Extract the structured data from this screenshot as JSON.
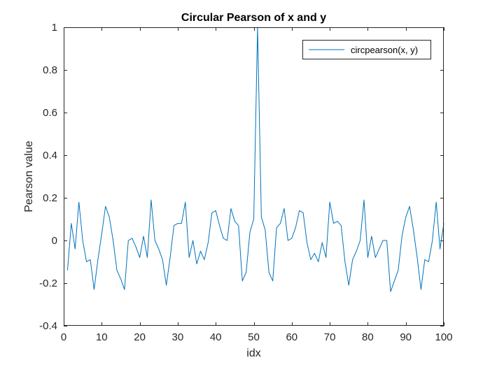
{
  "chart_data": {
    "type": "line",
    "title": "Circular Pearson of x and y",
    "xlabel": "idx",
    "ylabel": "Pearson value",
    "xlim": [
      0,
      100
    ],
    "ylim": [
      -0.4,
      1
    ],
    "xticks": [
      0,
      10,
      20,
      30,
      40,
      50,
      60,
      70,
      80,
      90,
      100
    ],
    "yticks": [
      -0.4,
      -0.2,
      0,
      0.2,
      0.4,
      0.6,
      0.8,
      1
    ],
    "xtick_labels": [
      "0",
      "10",
      "20",
      "30",
      "40",
      "50",
      "60",
      "70",
      "80",
      "90",
      "100"
    ],
    "ytick_labels": [
      "-0.4",
      "-0.2",
      "0",
      "0.2",
      "0.4",
      "0.6",
      "0.8",
      "1"
    ],
    "grid": false,
    "legend_position": "top-right",
    "series": [
      {
        "name": "circpearson(x, y)",
        "color": "#0072BD",
        "x": [
          1,
          2,
          3,
          4,
          5,
          6,
          7,
          8,
          9,
          10,
          11,
          12,
          13,
          14,
          15,
          16,
          17,
          18,
          19,
          20,
          21,
          22,
          23,
          24,
          25,
          26,
          27,
          28,
          29,
          30,
          31,
          32,
          33,
          34,
          35,
          36,
          37,
          38,
          39,
          40,
          41,
          42,
          43,
          44,
          45,
          46,
          47,
          48,
          49,
          50,
          51,
          52,
          53,
          54,
          55,
          56,
          57,
          58,
          59,
          60,
          61,
          62,
          63,
          64,
          65,
          66,
          67,
          68,
          69,
          70,
          71,
          72,
          73,
          74,
          75,
          76,
          77,
          78,
          79,
          80,
          81,
          82,
          83,
          84,
          85,
          86,
          87,
          88,
          89,
          90,
          91,
          92,
          93,
          94,
          95,
          96,
          97,
          98,
          99,
          100
        ],
        "y": [
          -0.14,
          0.08,
          -0.04,
          0.18,
          0.0,
          -0.1,
          -0.09,
          -0.23,
          -0.09,
          0.03,
          0.16,
          0.11,
          0.0,
          -0.14,
          -0.18,
          -0.23,
          0.0,
          0.01,
          -0.03,
          -0.08,
          0.02,
          -0.08,
          0.19,
          0.0,
          -0.04,
          -0.09,
          -0.21,
          -0.08,
          0.07,
          0.08,
          0.08,
          0.18,
          -0.08,
          0.0,
          -0.11,
          -0.05,
          -0.09,
          -0.01,
          0.13,
          0.14,
          0.07,
          0.01,
          0.0,
          0.15,
          0.09,
          0.07,
          -0.19,
          -0.15,
          0.04,
          0.1,
          1.0,
          0.11,
          0.05,
          -0.15,
          -0.19,
          0.06,
          0.08,
          0.15,
          0.0,
          0.01,
          0.06,
          0.14,
          0.13,
          -0.01,
          -0.09,
          -0.06,
          -0.1,
          -0.01,
          -0.08,
          0.18,
          0.08,
          0.09,
          0.07,
          -0.1,
          -0.21,
          -0.09,
          -0.05,
          0.0,
          0.19,
          -0.08,
          0.02,
          -0.08,
          -0.04,
          0.0,
          0.0,
          -0.24,
          -0.19,
          -0.14,
          0.02,
          0.11,
          0.16,
          0.05,
          -0.08,
          -0.23,
          -0.09,
          -0.1,
          0.0,
          0.18,
          -0.04,
          0.08
        ]
      }
    ]
  }
}
